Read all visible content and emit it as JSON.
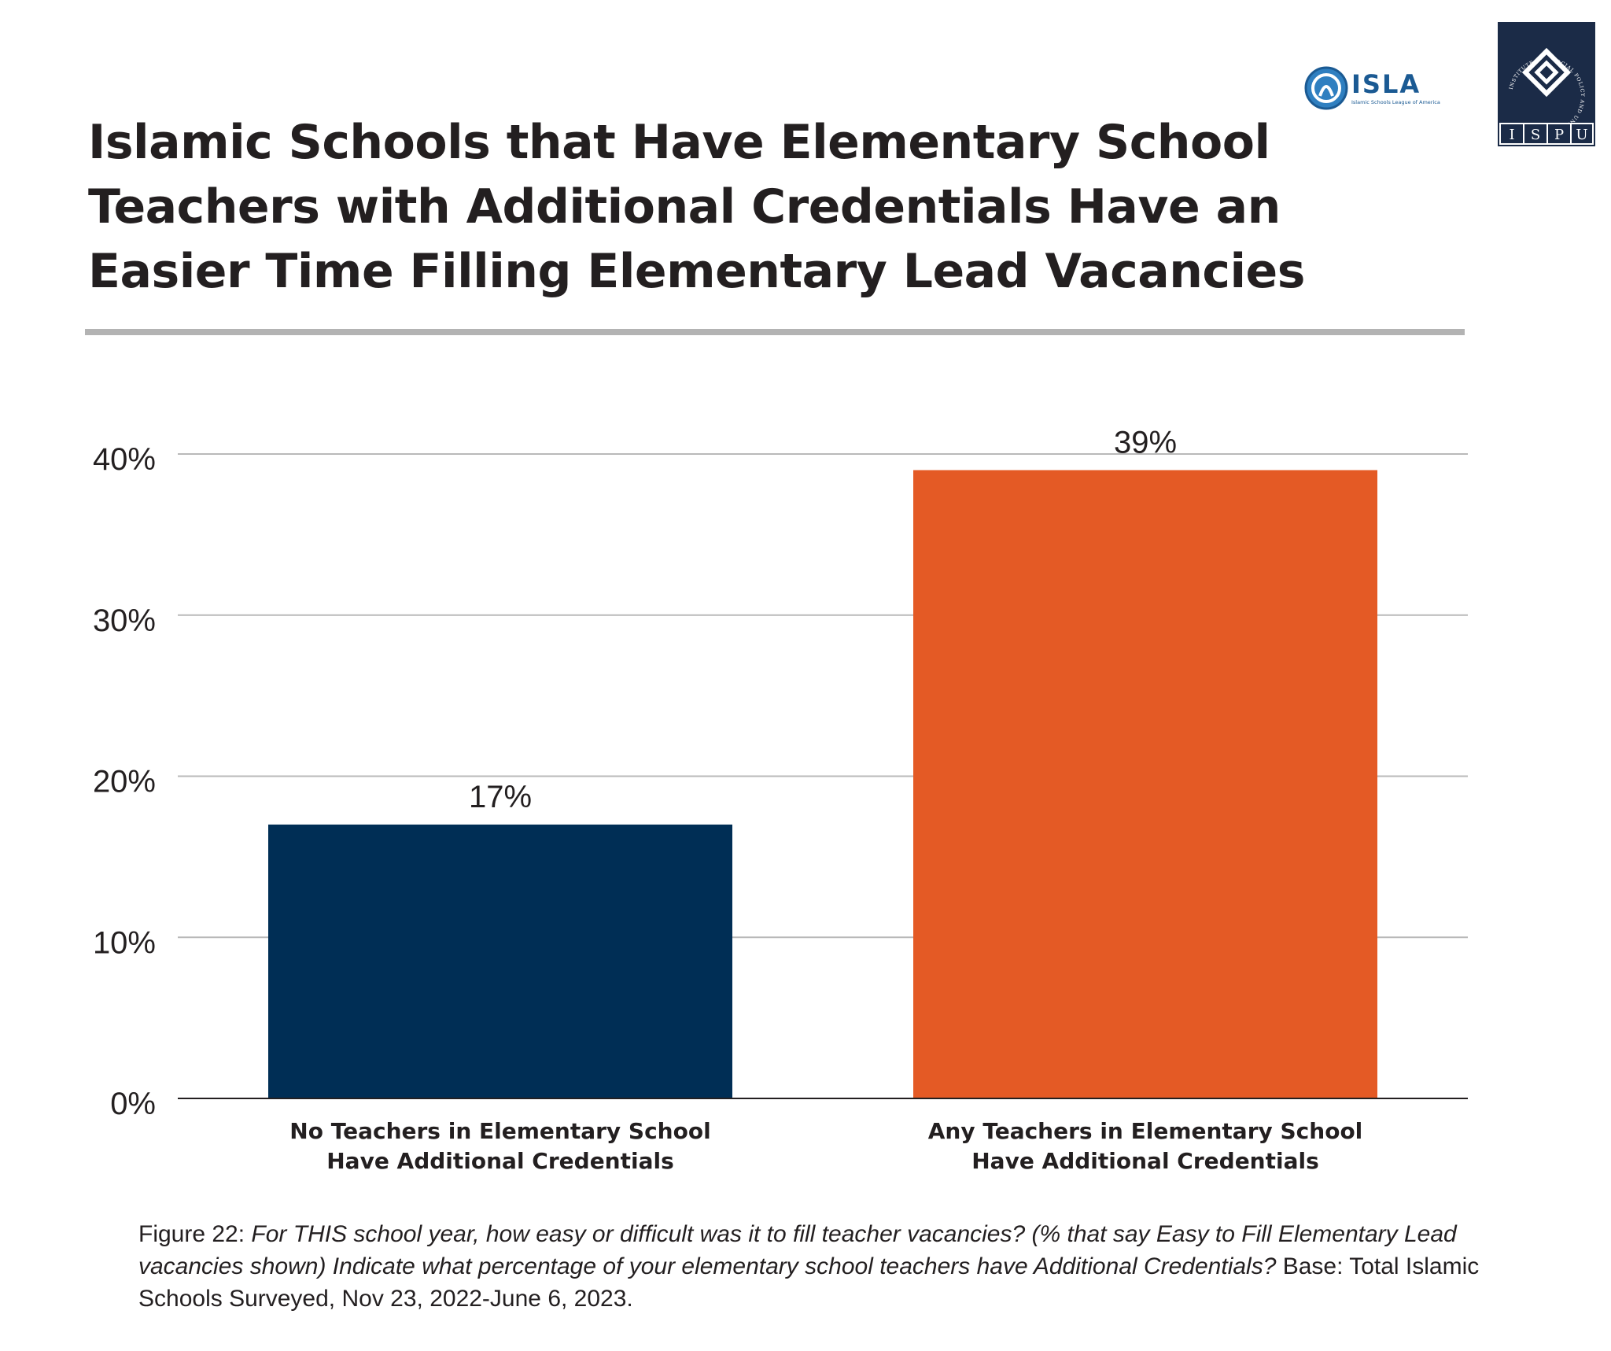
{
  "title": "Islamic Schools that Have Elementary School Teachers with Additional Credentials Have an Easier Time Filling Elementary Lead Vacancies",
  "logos": {
    "isla": {
      "name": "ISLA",
      "tagline": "Islamic Schools League of America"
    },
    "ispu": {
      "abbr": "ISPU",
      "letters": [
        "I",
        "S",
        "P",
        "U"
      ],
      "ring_text": "INSTITUTE FOR SOCIAL POLICY AND UNDERSTANDING"
    }
  },
  "colors": {
    "no_credentials": "#002e55",
    "any_credentials": "#e45a25",
    "gridline": "#b9b9b9",
    "axis": "#231f20",
    "title_rule": "#b3b3b3",
    "ispu_navy": "#1b2b47"
  },
  "chart_data": {
    "type": "bar",
    "title": "Islamic Schools that Have Elementary School Teachers with Additional Credentials Have an Easier Time Filling Elementary Lead Vacancies",
    "categories": [
      [
        "No Teachers in Elementary School",
        "Have Additional Credentials"
      ],
      [
        "Any Teachers in Elementary School",
        "Have Additional Credentials"
      ]
    ],
    "values": [
      17,
      39
    ],
    "value_labels": [
      "17%",
      "39%"
    ],
    "ylim": [
      0,
      40
    ],
    "yticks": [
      0,
      10,
      20,
      30,
      40
    ],
    "ytick_labels": [
      "0%",
      "10%",
      "20%",
      "30%",
      "40%"
    ],
    "xlabel": "",
    "ylabel": "",
    "grid": true,
    "legend": "none"
  },
  "caption": {
    "label": "Figure 22",
    "separator": ": ",
    "question": "For THIS school year, how easy or difficult was it to fill teacher vacancies? (% that say Easy to Fill Elementary Lead vacancies shown) Indicate what percentage of your elementary school teachers have Additional Credentials?",
    "base": " Base: Total Islamic Schools Surveyed, Nov 23, 2022-June 6, 2023."
  }
}
